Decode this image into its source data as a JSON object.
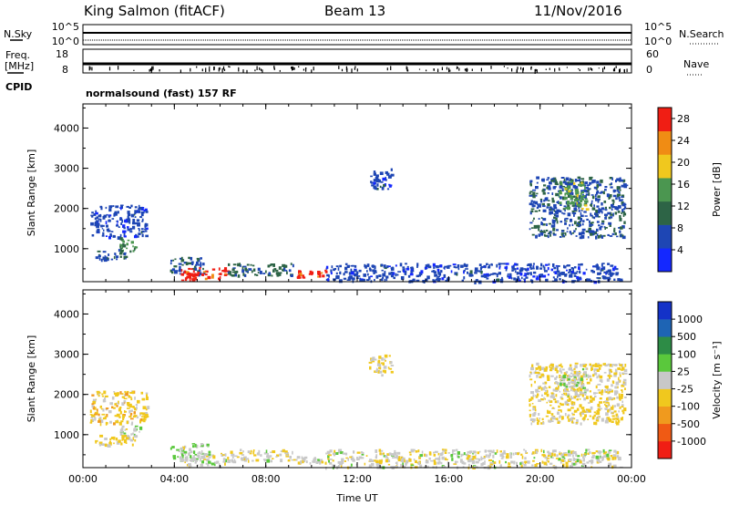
{
  "header": {
    "station": "King Salmon (fitACF)",
    "beam": "Beam 13",
    "date": "11/Nov/2016"
  },
  "status_panels": {
    "nsky_label": "N.Sky",
    "nsearch_label": "N.Search",
    "freq_label_1": "Freq.",
    "freq_label_2": "[MHz]",
    "nave_label": "Nave",
    "cpid_label": "CPID",
    "noise_ticks_left": [
      "10^5",
      "10^0"
    ],
    "noise_ticks_right": [
      "10^5",
      "10^0"
    ],
    "freq_ticks_left": [
      "18",
      "8"
    ],
    "nave_ticks_right": [
      "60",
      "0"
    ],
    "cpid_text": "normalsound (fast) 157 RF"
  },
  "chart_data": [
    {
      "type": "heatmap",
      "xlabel": "",
      "ylabel": "Slant Range [km]",
      "x_ticks": [
        "00:00",
        "04:00",
        "08:00",
        "12:00",
        "16:00",
        "20:00",
        "00:00"
      ],
      "xlim": [
        0,
        24
      ],
      "y_ticks": [
        "1000",
        "2000",
        "3000",
        "4000"
      ],
      "ylim": [
        180,
        4600
      ],
      "colorbar_label": "Power [dB]",
      "colorbar_ticks": [
        "4",
        "8",
        "12",
        "16",
        "20",
        "24",
        "28"
      ],
      "colorbar_range": [
        0,
        30
      ],
      "colors": [
        "#1428ff",
        "#1e46b4",
        "#2d6446",
        "#4b9650",
        "#f0c81e",
        "#f08c14",
        "#f01e14"
      ],
      "regions": [
        {
          "t": [
            0.3,
            2.8
          ],
          "r": [
            1300,
            2100
          ],
          "v": 6
        },
        {
          "t": [
            1.6,
            2.3
          ],
          "r": [
            950,
            1300
          ],
          "v": 14
        },
        {
          "t": [
            0.5,
            2.0
          ],
          "r": [
            750,
            1000
          ],
          "v": 7
        },
        {
          "t": [
            3.8,
            5.3
          ],
          "r": [
            380,
            800
          ],
          "v": 8
        },
        {
          "t": [
            4.2,
            6.3
          ],
          "r": [
            230,
            550
          ],
          "v": 27
        },
        {
          "t": [
            6.3,
            9.2
          ],
          "r": [
            350,
            650
          ],
          "v": 10
        },
        {
          "t": [
            9.3,
            10.6
          ],
          "r": [
            300,
            480
          ],
          "v": 27
        },
        {
          "t": [
            10.6,
            23.5
          ],
          "r": [
            200,
            650
          ],
          "v": 6
        },
        {
          "t": [
            19.5,
            23.7
          ],
          "r": [
            1300,
            2800
          ],
          "v": 8
        },
        {
          "t": [
            20.8,
            22.0
          ],
          "r": [
            2000,
            2700
          ],
          "v": 16
        },
        {
          "t": [
            12.5,
            13.5
          ],
          "r": [
            2500,
            3000
          ],
          "v": 6
        }
      ]
    },
    {
      "type": "heatmap",
      "xlabel": "Time UT",
      "ylabel": "Slant Range [km]",
      "x_ticks": [
        "00:00",
        "04:00",
        "08:00",
        "12:00",
        "16:00",
        "20:00",
        "00:00"
      ],
      "xlim": [
        0,
        24
      ],
      "y_ticks": [
        "1000",
        "2000",
        "3000",
        "4000"
      ],
      "ylim": [
        180,
        4600
      ],
      "colorbar_label": "Velocity [m s⁻¹]",
      "colorbar_ticks": [
        "1000",
        "500",
        "100",
        "25",
        "-25",
        "-100",
        "-500",
        "-1000"
      ],
      "colorbar_range": [
        -1000,
        1000
      ],
      "colors": [
        "#f01e14",
        "#f05a14",
        "#f09a1e",
        "#f0c81e",
        "#c8c8c8",
        "#5ac83c",
        "#2d8c46",
        "#1e64b4",
        "#1432c8"
      ],
      "regions": [
        {
          "t": [
            0.3,
            2.8
          ],
          "r": [
            1300,
            2100
          ],
          "v": -200
        },
        {
          "t": [
            1.6,
            2.5
          ],
          "r": [
            950,
            1300
          ],
          "v": 60
        },
        {
          "t": [
            0.5,
            2.3
          ],
          "r": [
            750,
            1000
          ],
          "v": -120
        },
        {
          "t": [
            3.8,
            5.5
          ],
          "r": [
            380,
            800
          ],
          "v": 60
        },
        {
          "t": [
            4.2,
            6.3
          ],
          "r": [
            230,
            550
          ],
          "v": 0
        },
        {
          "t": [
            6.3,
            9.2
          ],
          "r": [
            350,
            650
          ],
          "v": -60
        },
        {
          "t": [
            9.3,
            10.6
          ],
          "r": [
            300,
            480
          ],
          "v": -40
        },
        {
          "t": [
            10.6,
            23.5
          ],
          "r": [
            200,
            650
          ],
          "v": -30
        },
        {
          "t": [
            19.5,
            23.7
          ],
          "r": [
            1300,
            2800
          ],
          "v": -150
        },
        {
          "t": [
            20.8,
            22.0
          ],
          "r": [
            2000,
            2700
          ],
          "v": 50
        },
        {
          "t": [
            12.5,
            13.5
          ],
          "r": [
            2500,
            3000
          ],
          "v": -100
        }
      ]
    }
  ]
}
